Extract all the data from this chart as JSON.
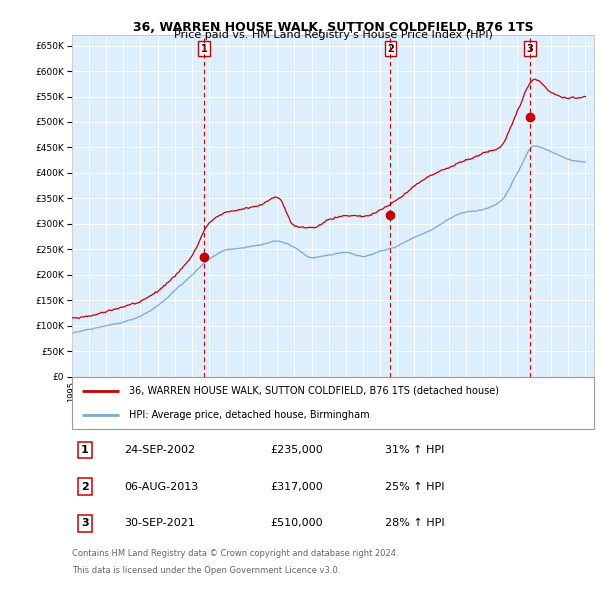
{
  "title_line1": "36, WARREN HOUSE WALK, SUTTON COLDFIELD, B76 1TS",
  "title_line2": "Price paid vs. HM Land Registry's House Price Index (HPI)",
  "ylim": [
    0,
    670000
  ],
  "yticks": [
    0,
    50000,
    100000,
    150000,
    200000,
    250000,
    300000,
    350000,
    400000,
    450000,
    500000,
    550000,
    600000,
    650000
  ],
  "background_color": "#ddeeff",
  "grid_color": "#ffffff",
  "legend_label_red": "36, WARREN HOUSE WALK, SUTTON COLDFIELD, B76 1TS (detached house)",
  "legend_label_blue": "HPI: Average price, detached house, Birmingham",
  "sale_points": [
    {
      "label": "1",
      "date": "24-SEP-2002",
      "price": 235000,
      "x_year": 2002.73,
      "hpi_pct": "31% ↑ HPI"
    },
    {
      "label": "2",
      "date": "06-AUG-2013",
      "price": 317000,
      "x_year": 2013.6,
      "hpi_pct": "25% ↑ HPI"
    },
    {
      "label": "3",
      "date": "30-SEP-2021",
      "price": 510000,
      "x_year": 2021.75,
      "hpi_pct": "28% ↑ HPI"
    }
  ],
  "footer_line1": "Contains HM Land Registry data © Crown copyright and database right 2024.",
  "footer_line2": "This data is licensed under the Open Government Licence v3.0.",
  "red_line_color": "#cc0000",
  "blue_line_color": "#7aaad0",
  "xmin": 1995,
  "xmax": 2025.5,
  "hpi_data": {
    "years": [
      1995,
      1996,
      1997,
      1998,
      1999,
      2000,
      2001,
      2002,
      2003,
      2004,
      2005,
      2006,
      2007,
      2008,
      2009,
      2010,
      2011,
      2012,
      2013,
      2014,
      2015,
      2016,
      2017,
      2018,
      2019,
      2020,
      2021,
      2022,
      2023,
      2024,
      2025
    ],
    "prices": [
      85000,
      93000,
      100000,
      108000,
      120000,
      140000,
      170000,
      200000,
      230000,
      248000,
      252000,
      258000,
      268000,
      255000,
      235000,
      240000,
      245000,
      238000,
      248000,
      258000,
      275000,
      290000,
      310000,
      325000,
      330000,
      345000,
      400000,
      455000,
      445000,
      430000,
      425000
    ]
  },
  "prop_data": {
    "years": [
      1995,
      1996,
      1997,
      1998,
      1999,
      2000,
      2001,
      2002,
      2003,
      2004,
      2005,
      2006,
      2007,
      2008,
      2009,
      2010,
      2011,
      2012,
      2013,
      2014,
      2015,
      2016,
      2017,
      2018,
      2019,
      2020,
      2021,
      2022,
      2023,
      2024,
      2025
    ],
    "prices": [
      115000,
      120000,
      128000,
      138000,
      150000,
      170000,
      200000,
      240000,
      305000,
      325000,
      330000,
      340000,
      355000,
      300000,
      295000,
      310000,
      318000,
      315000,
      325000,
      345000,
      370000,
      390000,
      405000,
      420000,
      430000,
      445000,
      515000,
      580000,
      558000,
      545000,
      548000
    ]
  }
}
